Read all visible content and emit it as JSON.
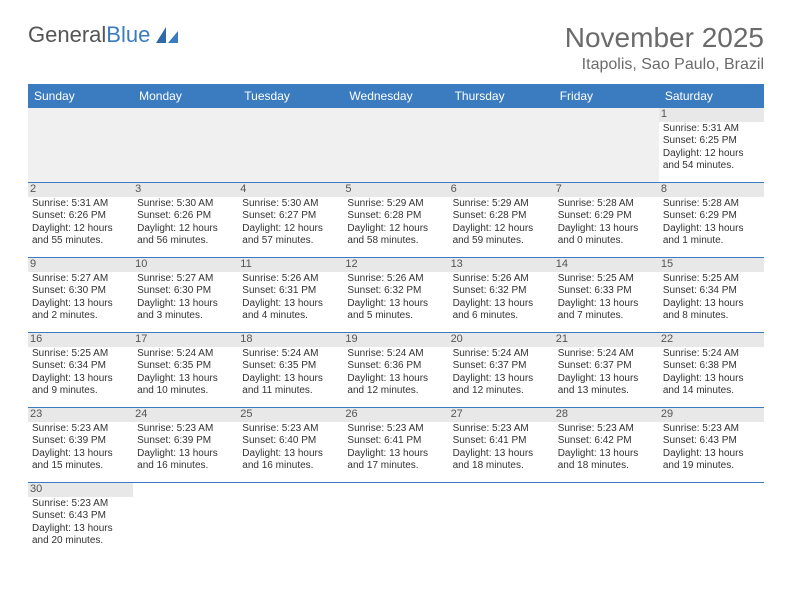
{
  "logo": {
    "text1": "General",
    "text2": "Blue"
  },
  "header": {
    "month_title": "November 2025",
    "location": "Itapolis, Sao Paulo, Brazil"
  },
  "colors": {
    "header_bg": "#3b7bbf",
    "header_text": "#ffffff",
    "title_text": "#6b6b6b",
    "cell_text": "#333333",
    "empty_bg": "#f0f0f0",
    "daynum_bg": "#e8e8e8",
    "border": "#3b7bbf"
  },
  "weekdays": [
    "Sunday",
    "Monday",
    "Tuesday",
    "Wednesday",
    "Thursday",
    "Friday",
    "Saturday"
  ],
  "weeks": [
    [
      null,
      null,
      null,
      null,
      null,
      null,
      {
        "n": "1",
        "sr": "Sunrise: 5:31 AM",
        "ss": "Sunset: 6:25 PM",
        "d1": "Daylight: 12 hours",
        "d2": "and 54 minutes."
      }
    ],
    [
      {
        "n": "2",
        "sr": "Sunrise: 5:31 AM",
        "ss": "Sunset: 6:26 PM",
        "d1": "Daylight: 12 hours",
        "d2": "and 55 minutes."
      },
      {
        "n": "3",
        "sr": "Sunrise: 5:30 AM",
        "ss": "Sunset: 6:26 PM",
        "d1": "Daylight: 12 hours",
        "d2": "and 56 minutes."
      },
      {
        "n": "4",
        "sr": "Sunrise: 5:30 AM",
        "ss": "Sunset: 6:27 PM",
        "d1": "Daylight: 12 hours",
        "d2": "and 57 minutes."
      },
      {
        "n": "5",
        "sr": "Sunrise: 5:29 AM",
        "ss": "Sunset: 6:28 PM",
        "d1": "Daylight: 12 hours",
        "d2": "and 58 minutes."
      },
      {
        "n": "6",
        "sr": "Sunrise: 5:29 AM",
        "ss": "Sunset: 6:28 PM",
        "d1": "Daylight: 12 hours",
        "d2": "and 59 minutes."
      },
      {
        "n": "7",
        "sr": "Sunrise: 5:28 AM",
        "ss": "Sunset: 6:29 PM",
        "d1": "Daylight: 13 hours",
        "d2": "and 0 minutes."
      },
      {
        "n": "8",
        "sr": "Sunrise: 5:28 AM",
        "ss": "Sunset: 6:29 PM",
        "d1": "Daylight: 13 hours",
        "d2": "and 1 minute."
      }
    ],
    [
      {
        "n": "9",
        "sr": "Sunrise: 5:27 AM",
        "ss": "Sunset: 6:30 PM",
        "d1": "Daylight: 13 hours",
        "d2": "and 2 minutes."
      },
      {
        "n": "10",
        "sr": "Sunrise: 5:27 AM",
        "ss": "Sunset: 6:30 PM",
        "d1": "Daylight: 13 hours",
        "d2": "and 3 minutes."
      },
      {
        "n": "11",
        "sr": "Sunrise: 5:26 AM",
        "ss": "Sunset: 6:31 PM",
        "d1": "Daylight: 13 hours",
        "d2": "and 4 minutes."
      },
      {
        "n": "12",
        "sr": "Sunrise: 5:26 AM",
        "ss": "Sunset: 6:32 PM",
        "d1": "Daylight: 13 hours",
        "d2": "and 5 minutes."
      },
      {
        "n": "13",
        "sr": "Sunrise: 5:26 AM",
        "ss": "Sunset: 6:32 PM",
        "d1": "Daylight: 13 hours",
        "d2": "and 6 minutes."
      },
      {
        "n": "14",
        "sr": "Sunrise: 5:25 AM",
        "ss": "Sunset: 6:33 PM",
        "d1": "Daylight: 13 hours",
        "d2": "and 7 minutes."
      },
      {
        "n": "15",
        "sr": "Sunrise: 5:25 AM",
        "ss": "Sunset: 6:34 PM",
        "d1": "Daylight: 13 hours",
        "d2": "and 8 minutes."
      }
    ],
    [
      {
        "n": "16",
        "sr": "Sunrise: 5:25 AM",
        "ss": "Sunset: 6:34 PM",
        "d1": "Daylight: 13 hours",
        "d2": "and 9 minutes."
      },
      {
        "n": "17",
        "sr": "Sunrise: 5:24 AM",
        "ss": "Sunset: 6:35 PM",
        "d1": "Daylight: 13 hours",
        "d2": "and 10 minutes."
      },
      {
        "n": "18",
        "sr": "Sunrise: 5:24 AM",
        "ss": "Sunset: 6:35 PM",
        "d1": "Daylight: 13 hours",
        "d2": "and 11 minutes."
      },
      {
        "n": "19",
        "sr": "Sunrise: 5:24 AM",
        "ss": "Sunset: 6:36 PM",
        "d1": "Daylight: 13 hours",
        "d2": "and 12 minutes."
      },
      {
        "n": "20",
        "sr": "Sunrise: 5:24 AM",
        "ss": "Sunset: 6:37 PM",
        "d1": "Daylight: 13 hours",
        "d2": "and 12 minutes."
      },
      {
        "n": "21",
        "sr": "Sunrise: 5:24 AM",
        "ss": "Sunset: 6:37 PM",
        "d1": "Daylight: 13 hours",
        "d2": "and 13 minutes."
      },
      {
        "n": "22",
        "sr": "Sunrise: 5:24 AM",
        "ss": "Sunset: 6:38 PM",
        "d1": "Daylight: 13 hours",
        "d2": "and 14 minutes."
      }
    ],
    [
      {
        "n": "23",
        "sr": "Sunrise: 5:23 AM",
        "ss": "Sunset: 6:39 PM",
        "d1": "Daylight: 13 hours",
        "d2": "and 15 minutes."
      },
      {
        "n": "24",
        "sr": "Sunrise: 5:23 AM",
        "ss": "Sunset: 6:39 PM",
        "d1": "Daylight: 13 hours",
        "d2": "and 16 minutes."
      },
      {
        "n": "25",
        "sr": "Sunrise: 5:23 AM",
        "ss": "Sunset: 6:40 PM",
        "d1": "Daylight: 13 hours",
        "d2": "and 16 minutes."
      },
      {
        "n": "26",
        "sr": "Sunrise: 5:23 AM",
        "ss": "Sunset: 6:41 PM",
        "d1": "Daylight: 13 hours",
        "d2": "and 17 minutes."
      },
      {
        "n": "27",
        "sr": "Sunrise: 5:23 AM",
        "ss": "Sunset: 6:41 PM",
        "d1": "Daylight: 13 hours",
        "d2": "and 18 minutes."
      },
      {
        "n": "28",
        "sr": "Sunrise: 5:23 AM",
        "ss": "Sunset: 6:42 PM",
        "d1": "Daylight: 13 hours",
        "d2": "and 18 minutes."
      },
      {
        "n": "29",
        "sr": "Sunrise: 5:23 AM",
        "ss": "Sunset: 6:43 PM",
        "d1": "Daylight: 13 hours",
        "d2": "and 19 minutes."
      }
    ],
    [
      {
        "n": "30",
        "sr": "Sunrise: 5:23 AM",
        "ss": "Sunset: 6:43 PM",
        "d1": "Daylight: 13 hours",
        "d2": "and 20 minutes."
      },
      null,
      null,
      null,
      null,
      null,
      null
    ]
  ]
}
